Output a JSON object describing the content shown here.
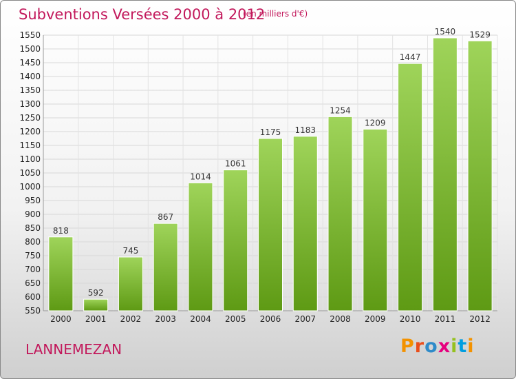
{
  "header": {
    "title": "Subventions Versées 2000 à 2012",
    "subtitle": "(en milliers d'€)"
  },
  "footer": {
    "town": "LANNEMEZAN",
    "logo_text": "Proxiti"
  },
  "colors": {
    "accent": "#c2185b",
    "bar_top": "#9fd45a",
    "bar_bottom": "#5e9a14"
  },
  "chart_data": {
    "type": "bar",
    "title": "Subventions Versées 2000 à 2012",
    "subtitle": "(en milliers d'€)",
    "xlabel": "",
    "ylabel": "",
    "categories": [
      "2000",
      "2001",
      "2002",
      "2003",
      "2004",
      "2005",
      "2006",
      "2007",
      "2008",
      "2009",
      "2010",
      "2011",
      "2012"
    ],
    "values": [
      818,
      592,
      745,
      867,
      1014,
      1061,
      1175,
      1183,
      1254,
      1209,
      1447,
      1540,
      1529
    ],
    "ylim": [
      550,
      1550
    ],
    "ytick_step": 50,
    "grid": true
  }
}
